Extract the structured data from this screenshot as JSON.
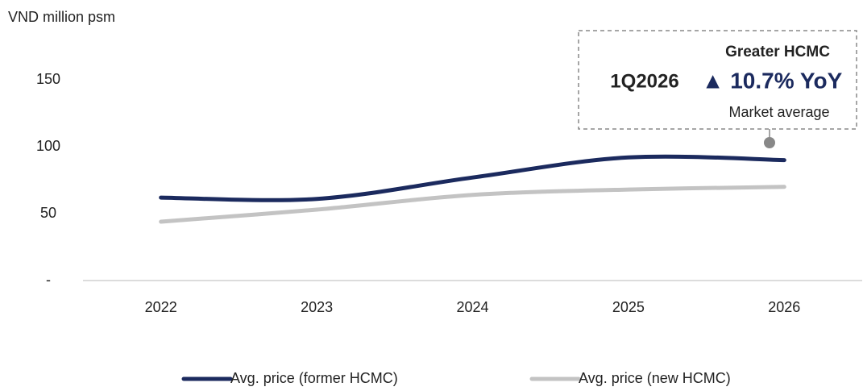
{
  "chart_data": {
    "type": "line",
    "y_axis_label": "VND million psm",
    "categories": [
      "2022",
      "2023",
      "2024",
      "2025",
      "2026"
    ],
    "series": [
      {
        "name": "Avg. price (former HCMC)",
        "color": "#1b2a5e",
        "values": [
          62,
          61,
          77,
          92,
          90
        ]
      },
      {
        "name": "Avg. price (new HCMC)",
        "color": "#c3c3c3",
        "values": [
          44,
          53,
          64,
          68,
          70
        ]
      }
    ],
    "ylim": [
      0,
      200
    ],
    "yticks": [
      {
        "value": 0,
        "label": "-"
      },
      50,
      100,
      150
    ],
    "grid": false,
    "legend": "bottom",
    "annotation": {
      "heading": "Greater HCMC",
      "period": "1Q2026",
      "change": "▲ 10.7% YoY",
      "note": "Market average"
    }
  }
}
